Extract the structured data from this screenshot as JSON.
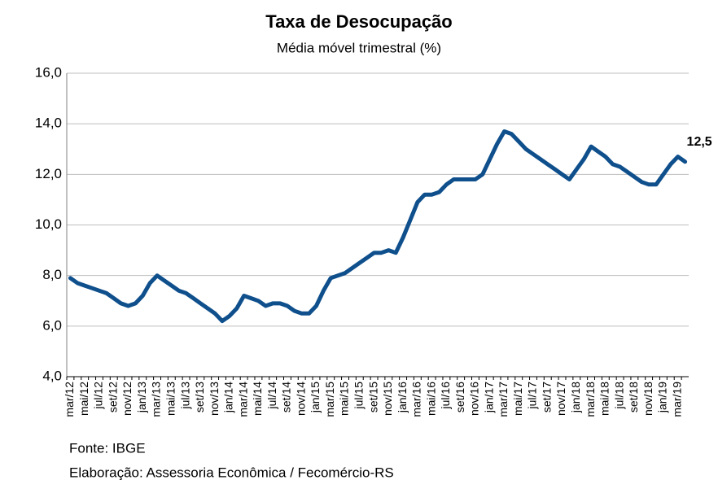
{
  "chart_data": {
    "type": "line",
    "title": "Taxa de Desocupação",
    "subtitle": "Média móvel trimestral (%)",
    "categories": [
      "mar/12",
      null,
      "mai/12",
      null,
      "jul/12",
      null,
      "set/12",
      null,
      "nov/12",
      null,
      "jan/13",
      null,
      "mar/13",
      null,
      "mai/13",
      null,
      "jul/13",
      null,
      "set/13",
      null,
      "nov/13",
      null,
      "jan/14",
      null,
      "mar/14",
      null,
      "mai/14",
      null,
      "jul/14",
      null,
      "set/14",
      null,
      "nov/14",
      null,
      "jan/15",
      null,
      "mar/15",
      null,
      "mai/15",
      null,
      "jul/15",
      null,
      "set/15",
      null,
      "nov/15",
      null,
      "jan/16",
      null,
      "mar/16",
      null,
      "mai/16",
      null,
      "jul/16",
      null,
      "set/16",
      null,
      "nov/16",
      null,
      "jan/17",
      null,
      "mar/17",
      null,
      "mai/17",
      null,
      "jul/17",
      null,
      "set/17",
      null,
      "nov/17",
      null,
      "jan/18",
      null,
      "mar/18",
      null,
      "mai/18",
      null,
      "jul/18",
      null,
      "set/18",
      null,
      "nov/18",
      null,
      "jan/19",
      null,
      "mar/19",
      null
    ],
    "series": [
      {
        "name": "Taxa de Desocupação",
        "color": "#0e4f8c",
        "values": [
          7.9,
          7.7,
          7.6,
          7.5,
          7.4,
          7.3,
          7.1,
          6.9,
          6.8,
          6.9,
          7.2,
          7.7,
          8.0,
          7.8,
          7.6,
          7.4,
          7.3,
          7.1,
          6.9,
          6.7,
          6.5,
          6.2,
          6.4,
          6.7,
          7.2,
          7.1,
          7.0,
          6.8,
          6.9,
          6.9,
          6.8,
          6.6,
          6.5,
          6.5,
          6.8,
          7.4,
          7.9,
          8.0,
          8.1,
          8.3,
          8.5,
          8.7,
          8.9,
          8.9,
          9.0,
          8.9,
          9.5,
          10.2,
          10.9,
          11.2,
          11.2,
          11.3,
          11.6,
          11.8,
          11.8,
          11.8,
          11.8,
          12.0,
          12.6,
          13.2,
          13.7,
          13.6,
          13.3,
          13.0,
          12.8,
          12.6,
          12.4,
          12.2,
          12.0,
          11.8,
          12.2,
          12.6,
          13.1,
          12.9,
          12.7,
          12.4,
          12.3,
          12.1,
          11.9,
          11.7,
          11.6,
          11.6,
          12.0,
          12.4,
          12.7,
          12.5
        ],
        "value_labels": [
          null,
          null,
          null,
          null,
          null,
          null,
          null,
          null,
          null,
          null,
          null,
          null,
          null,
          null,
          null,
          null,
          null,
          null,
          null,
          null,
          null,
          null,
          null,
          null,
          null,
          null,
          null,
          null,
          null,
          null,
          null,
          null,
          null,
          null,
          null,
          null,
          null,
          null,
          null,
          null,
          null,
          null,
          null,
          null,
          null,
          null,
          null,
          null,
          null,
          null,
          null,
          null,
          null,
          null,
          null,
          null,
          null,
          null,
          null,
          null,
          null,
          null,
          null,
          null,
          null,
          null,
          null,
          null,
          null,
          null,
          null,
          null,
          null,
          null,
          null,
          null,
          null,
          null,
          null,
          null,
          null,
          null,
          null,
          null,
          null,
          "12,5"
        ]
      }
    ],
    "ylim": [
      4,
      16
    ],
    "yticks": [
      {
        "value": 4,
        "label": "4,0"
      },
      {
        "value": 6,
        "label": "6,0"
      },
      {
        "value": 8,
        "label": "8,0"
      },
      {
        "value": 10,
        "label": "10,0"
      },
      {
        "value": 12,
        "label": "12,0"
      },
      {
        "value": 14,
        "label": "14,0"
      },
      {
        "value": 16,
        "label": "16,0"
      }
    ],
    "grid": true,
    "notes": [
      "Fonte: IBGE",
      "Elaboração: Assessoria Econômica / Fecomércio-RS"
    ]
  }
}
